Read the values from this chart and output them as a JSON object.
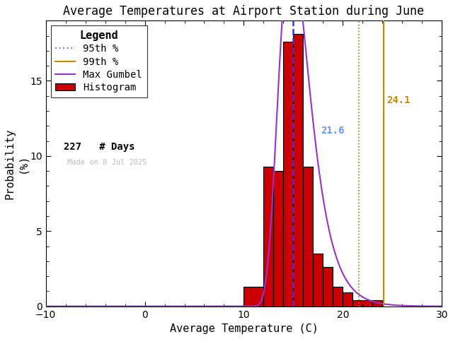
{
  "title": "Average Temperatures at Airport Station during June",
  "xlabel": "Average Temperature (C)",
  "ylabel": "Probability\n(%)",
  "xlim": [
    -10,
    30
  ],
  "ylim": [
    0,
    19
  ],
  "xticks": [
    -10,
    0,
    10,
    20,
    30
  ],
  "yticks": [
    0,
    5,
    10,
    15
  ],
  "hist_left_edges": [
    10,
    12,
    13,
    14,
    15,
    16,
    17,
    18,
    19,
    20,
    21,
    23
  ],
  "hist_widths": [
    2,
    1,
    1,
    1,
    1,
    1,
    1,
    1,
    1,
    1,
    2,
    1
  ],
  "hist_values": [
    1.3,
    9.3,
    9.0,
    17.6,
    18.1,
    9.3,
    3.5,
    2.6,
    1.3,
    0.9,
    0.4,
    0.4
  ],
  "bar_color": "#cc0000",
  "bar_edgecolor": "#000000",
  "pct95": 21.6,
  "pct99": 24.1,
  "pct95_color": "#7b7b00",
  "pct99_color": "#8b5a00",
  "pct95_linestyle": "dotted",
  "pct99_linestyle": "solid",
  "pct95_text_color": "#6699ff",
  "pct99_text_color": "#cc8800",
  "gumbel_mu": 14.8,
  "gumbel_beta": 1.55,
  "gumbel_color": "#9933cc",
  "dashed_line_x": 15.0,
  "dashed_line_color": "#3333ff",
  "n_days": 227,
  "made_on": "Made on 8 Jul 2025",
  "made_on_color": "#bbbbbb",
  "background_color": "#ffffff",
  "title_fontsize": 12,
  "label_fontsize": 11,
  "tick_fontsize": 10,
  "legend_fontsize": 10
}
